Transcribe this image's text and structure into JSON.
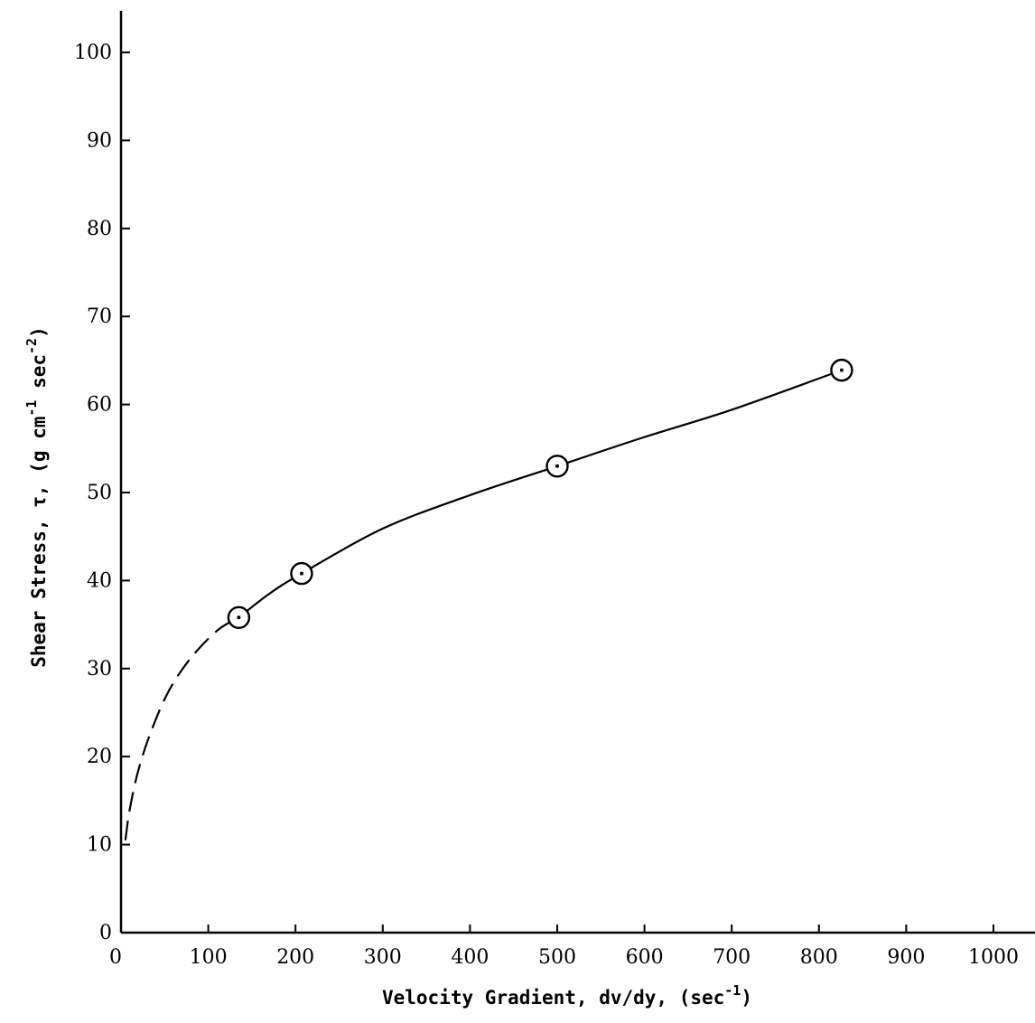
{
  "chart_data": {
    "type": "line",
    "title": "",
    "xlabel": "Velocity Gradient, dv/dy, (sec",
    "xlabel_sup": "-1",
    "xlabel_close": ")",
    "ylabel": "Shear Stress, τ, (g cm",
    "ylabel_sup1": "-1",
    "ylabel_mid": " sec",
    "ylabel_sup2": "-2",
    "ylabel_close": ")",
    "xlim": [
      0,
      1000
    ],
    "ylim": [
      0,
      100
    ],
    "x_ticks": [
      0,
      100,
      200,
      300,
      400,
      500,
      600,
      700,
      800,
      900,
      1000
    ],
    "y_ticks": [
      0,
      10,
      20,
      30,
      40,
      50,
      60,
      70,
      80,
      90,
      100
    ],
    "grid": false,
    "series": [
      {
        "style": "points",
        "marker": "circled-dot",
        "x": [
          135,
          207,
          500,
          826
        ],
        "y": [
          35.8,
          40.8,
          53.0,
          63.9
        ]
      },
      {
        "style": "solid-curve",
        "x": [
          135,
          170,
          207,
          300,
          400,
          500,
          600,
          700,
          826
        ],
        "y": [
          35.8,
          38.5,
          40.8,
          45.9,
          49.7,
          53.0,
          56.3,
          59.4,
          63.9
        ]
      },
      {
        "style": "dashed-curve",
        "x": [
          5,
          10,
          20,
          35,
          55,
          80,
          110,
          135
        ],
        "y": [
          10.5,
          14.0,
          18.5,
          23.0,
          27.5,
          31.2,
          34.3,
          35.8
        ]
      }
    ]
  }
}
